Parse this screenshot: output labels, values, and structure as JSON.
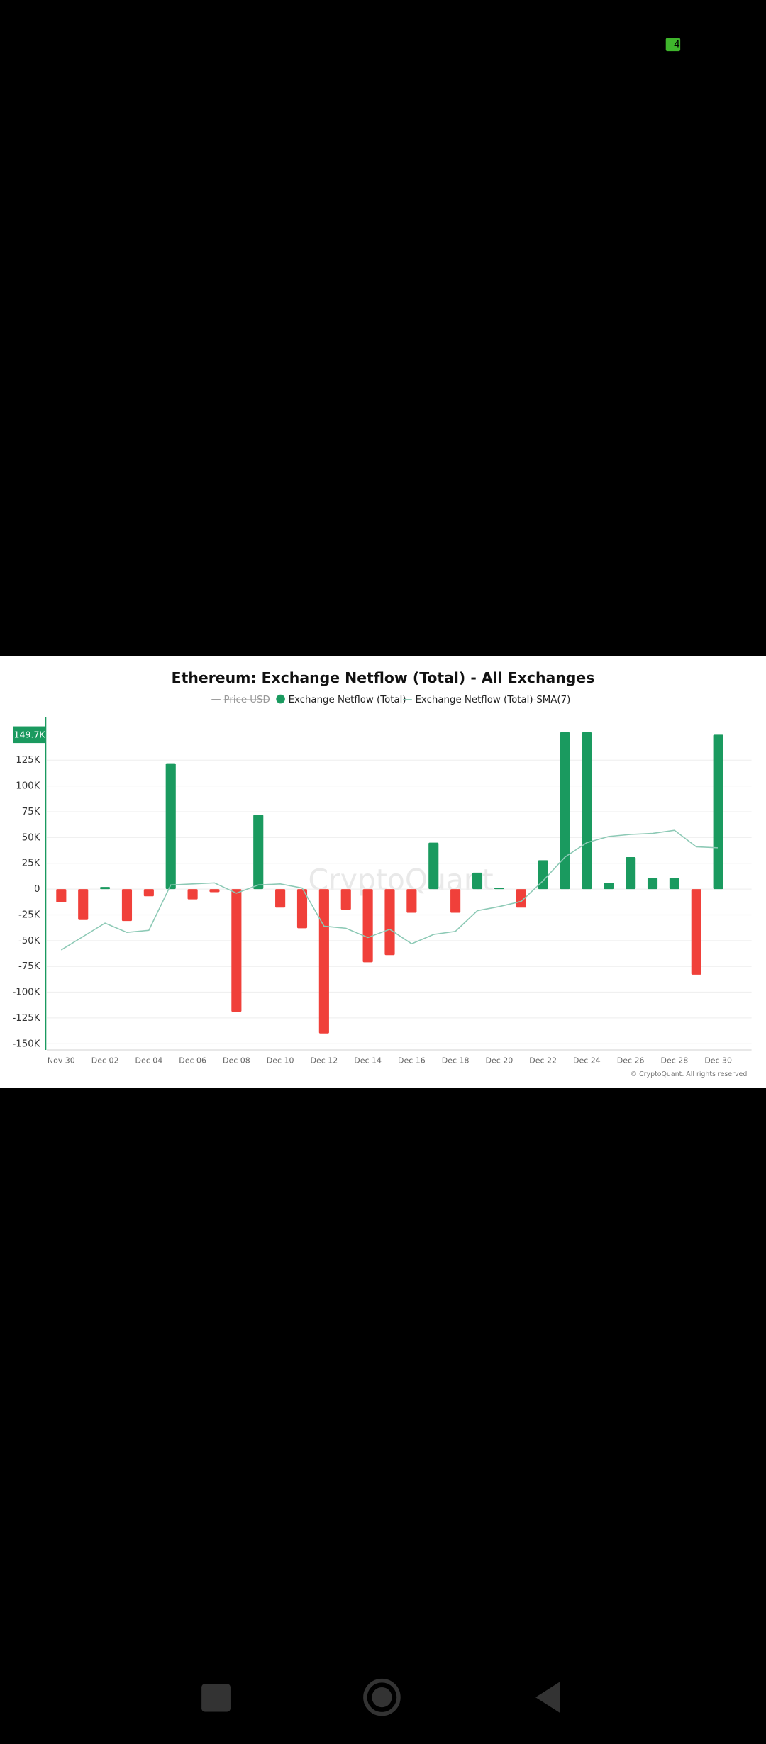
{
  "status_bar": {
    "battery": "4"
  },
  "chart_data": {
    "type": "bar",
    "title": "Ethereum: Exchange Netflow (Total) - All Exchanges",
    "watermark": "CryptoQuant",
    "copyright": "© CryptoQuant. All rights reserved",
    "hidden_series": [
      {
        "name": "Price USD",
        "color": "#9a9a9a"
      }
    ],
    "categories": [
      "Nov 30",
      null,
      "Dec 02",
      null,
      "Dec 04",
      null,
      "Dec 06",
      null,
      "Dec 08",
      null,
      "Dec 10",
      null,
      "Dec 12",
      null,
      "Dec 14",
      null,
      "Dec 16",
      null,
      "Dec 18",
      null,
      "Dec 20",
      null,
      "Dec 22",
      null,
      "Dec 24",
      null,
      "Dec 26",
      null,
      "Dec 28",
      null,
      "Dec 30"
    ],
    "series": [
      {
        "name": "Exchange Netflow (Total)",
        "color": "#1a9a5f",
        "negative_color": "#f0403a",
        "values": [
          -13000,
          -30000,
          2000,
          -31000,
          -7000,
          122000,
          -10000,
          -3000,
          -119000,
          72000,
          -18000,
          -38000,
          -140000,
          -20000,
          -71000,
          -64000,
          -23000,
          45000,
          -23000,
          16000,
          1000,
          -18000,
          28000,
          152000,
          152000,
          6000,
          31000,
          11000,
          11000,
          -83000,
          149700
        ]
      },
      {
        "name": "Exchange Netflow (Total)-SMA(7)",
        "color": "#8cc9b5",
        "type": "line",
        "values": [
          -59000,
          -46000,
          -33000,
          -42000,
          -40000,
          4000,
          5000,
          6000,
          -4000,
          4000,
          5000,
          1000,
          -36000,
          -38000,
          -47000,
          -39000,
          -53000,
          -44000,
          -41000,
          -21000,
          -17000,
          -12000,
          8000,
          31000,
          45000,
          51000,
          53000,
          54000,
          57000,
          41000,
          40000
        ]
      }
    ],
    "last_value": {
      "value": 149700,
      "label": "149.7K"
    },
    "ylim": [
      -156000,
      160000
    ],
    "yticks": [
      {
        "value": -150000,
        "label": "-150K"
      },
      {
        "value": -125000,
        "label": "-125K"
      },
      {
        "value": -100000,
        "label": "-100K"
      },
      {
        "value": -75000,
        "label": "-75K"
      },
      {
        "value": -50000,
        "label": "-50K"
      },
      {
        "value": -25000,
        "label": "-25K"
      },
      0,
      {
        "value": 25000,
        "label": "25K"
      },
      {
        "value": 50000,
        "label": "50K"
      },
      {
        "value": 75000,
        "label": "75K"
      },
      {
        "value": 100000,
        "label": "100K"
      },
      {
        "value": 125000,
        "label": "125K"
      }
    ],
    "grid": true
  }
}
